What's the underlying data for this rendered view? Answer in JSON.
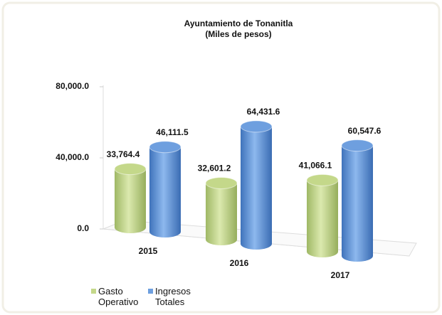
{
  "chart_data": {
    "type": "bar",
    "title": "Ayuntamiento de Tonanitla",
    "subtitle": "(Miles de pesos)",
    "categories": [
      "2015",
      "2016",
      "2017"
    ],
    "series": [
      {
        "name": "Gasto Operativo",
        "color": "#c4d88a",
        "values": [
          33764.4,
          32601.2,
          41066.1
        ],
        "value_labels": [
          "33,764.4",
          "32,601.2",
          "41,066.1"
        ]
      },
      {
        "name": "Ingresos Totales",
        "color": "#6e9fdf",
        "values": [
          46111.5,
          64431.6,
          60547.6
        ],
        "value_labels": [
          "46,111.5",
          "64,431.6",
          "60,547.6"
        ]
      }
    ],
    "ylim": [
      0,
      80000
    ],
    "yticks": [
      {
        "value": 0,
        "label": "0.0"
      },
      {
        "value": 40000,
        "label": "40,000.0"
      },
      {
        "value": 80000,
        "label": "80,000.0"
      }
    ],
    "legend": "bottom-left"
  }
}
